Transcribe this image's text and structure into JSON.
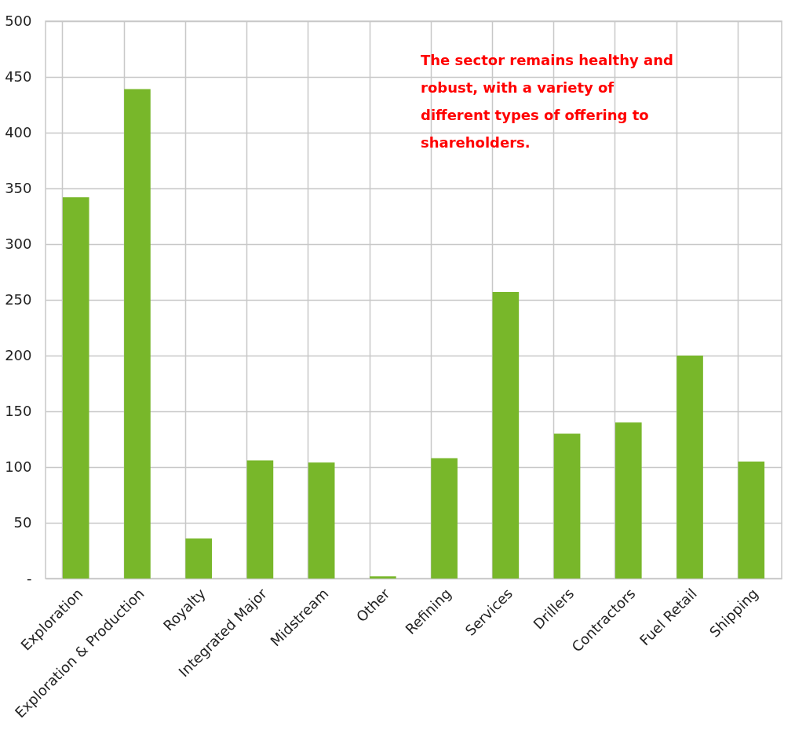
{
  "chart_data": {
    "type": "bar",
    "categories": [
      "Exploration",
      "Exploration & Production",
      "Royalty",
      "Integrated Major",
      "Midstream",
      "Other",
      "Refining",
      "Services",
      "Drillers",
      "Contractors",
      "Fuel Retail",
      "Shipping"
    ],
    "values": [
      342,
      439,
      36,
      106,
      104,
      2,
      108,
      257,
      130,
      140,
      200,
      105
    ],
    "color": "#78b72a",
    "ylim": [
      0,
      500
    ],
    "yticks": [
      {
        "value": 0,
        "label": "-"
      },
      50,
      100,
      150,
      200,
      250,
      300,
      350,
      400,
      450,
      500
    ],
    "grid": true,
    "annotations": [
      "The sector remains healthy and robust, with a variety of different types of offering to shareholders."
    ]
  }
}
